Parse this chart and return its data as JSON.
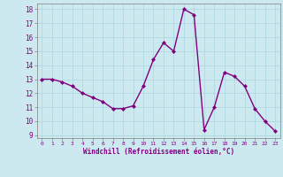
{
  "x": [
    0,
    1,
    2,
    3,
    4,
    5,
    6,
    7,
    8,
    9,
    10,
    11,
    12,
    13,
    14,
    15,
    16,
    17,
    18,
    19,
    20,
    21,
    22,
    23
  ],
  "y": [
    13,
    13,
    12.8,
    12.5,
    12,
    11.7,
    11.4,
    10.9,
    10.9,
    11.1,
    12.5,
    14.4,
    15.6,
    15.0,
    18.0,
    17.6,
    9.4,
    11.0,
    13.5,
    13.2,
    12.5,
    10.9,
    10.0,
    9.3
  ],
  "line_color": "#800080",
  "marker": "D",
  "marker_size": 2.0,
  "background_color": "#cde9f0",
  "grid_color": "#b0d8e5",
  "xlabel": "Windchill (Refroidissement éolien,°C)",
  "xlabel_color": "#800080",
  "tick_color": "#800080",
  "ylim": [
    8.8,
    18.4
  ],
  "yticks": [
    9,
    10,
    11,
    12,
    13,
    14,
    15,
    16,
    17,
    18
  ],
  "xticks": [
    0,
    1,
    2,
    3,
    4,
    5,
    6,
    7,
    8,
    9,
    10,
    11,
    12,
    13,
    14,
    15,
    16,
    17,
    18,
    19,
    20,
    21,
    22,
    23
  ],
  "xlim": [
    -0.5,
    23.5
  ],
  "line_width": 1.0,
  "spine_color": "#808080"
}
